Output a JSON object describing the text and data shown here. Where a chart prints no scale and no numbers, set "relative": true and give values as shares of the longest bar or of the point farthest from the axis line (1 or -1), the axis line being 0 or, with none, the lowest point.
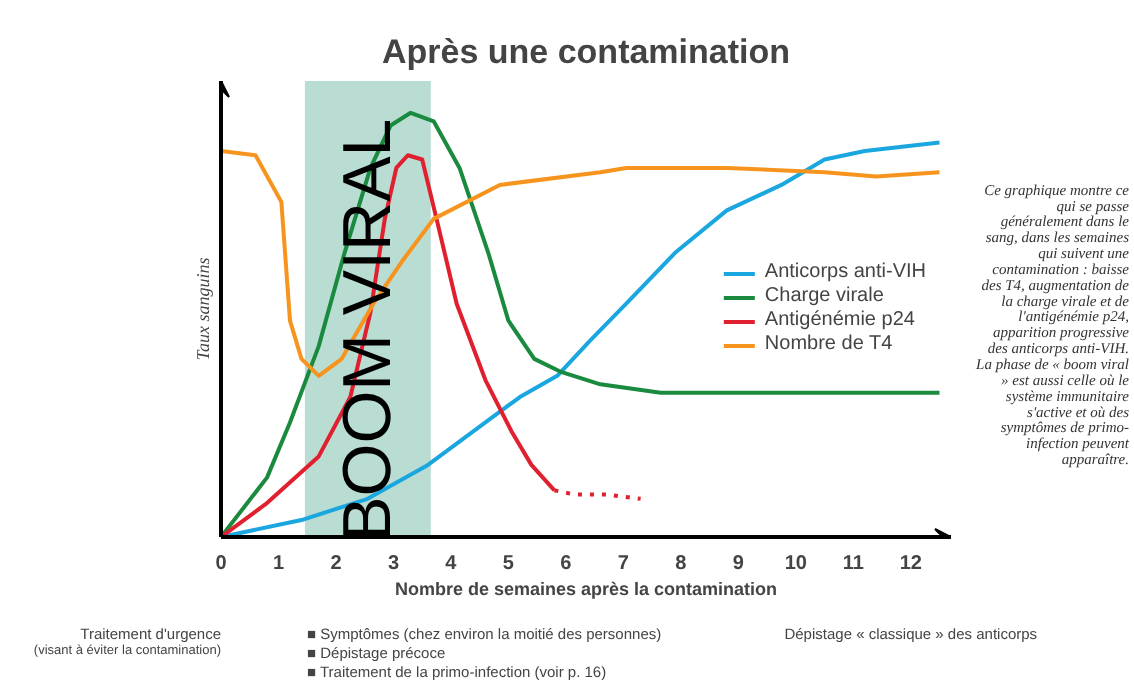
{
  "chart_data": {
    "type": "line",
    "title": "Après une contamination",
    "xlabel": "Nombre de semaines après la contamination",
    "ylabel": "Taux sanguins",
    "relative": true,
    "grid": false,
    "legend": "right",
    "line_style": "solid",
    "marker": "none",
    "xlim": [
      0,
      12.7
    ],
    "xticks": [
      0,
      1,
      2,
      3,
      4,
      5,
      6,
      7,
      8,
      9,
      10,
      11,
      12
    ],
    "series": [
      {
        "name": "Anticorps anti-VIH",
        "color": "#1aa7e0",
        "x": [
          0,
          1.4,
          2.55,
          3.6,
          4.5,
          5.2,
          5.85,
          6.4,
          7.05,
          7.9,
          8.8,
          9.75,
          10.5,
          11.2,
          12.5
        ],
        "values": [
          0,
          0.04,
          0.09,
          0.17,
          0.26,
          0.33,
          0.38,
          0.46,
          0.55,
          0.67,
          0.77,
          0.83,
          0.89,
          0.91,
          0.93
        ]
      },
      {
        "name": "Charge virale",
        "color": "#1a8a3e",
        "x": [
          0,
          0.8,
          1.2,
          1.7,
          2.15,
          2.6,
          2.95,
          3.3,
          3.7,
          4.15,
          4.65,
          5,
          5.45,
          5.9,
          6.6,
          7.65,
          9.4,
          12.5
        ],
        "values": [
          0,
          0.14,
          0.27,
          0.45,
          0.67,
          0.87,
          0.97,
          1.0,
          0.98,
          0.87,
          0.67,
          0.51,
          0.42,
          0.39,
          0.36,
          0.34,
          0.34,
          0.34
        ]
      },
      {
        "name": "Antigénémie p24",
        "color": "#e0202e",
        "x": [
          0,
          0.8,
          1.7,
          2.25,
          2.6,
          2.85,
          3.05,
          3.25,
          3.5,
          3.75,
          4.1,
          4.6,
          5.05,
          5.4,
          5.8
        ],
        "values": [
          0,
          0.08,
          0.19,
          0.33,
          0.53,
          0.75,
          0.87,
          0.9,
          0.89,
          0.75,
          0.55,
          0.37,
          0.25,
          0.17,
          0.11
        ]
      },
      {
        "name": "Nombre de T4",
        "color": "#f7941d",
        "x": [
          0,
          0.6,
          1.05,
          1.2,
          1.4,
          1.7,
          2.1,
          2.65,
          3.15,
          3.7,
          4.85,
          6.6,
          7.05,
          8.8,
          10.5,
          11.4,
          12.5
        ],
        "values": [
          0.91,
          0.9,
          0.79,
          0.51,
          0.42,
          0.38,
          0.42,
          0.55,
          0.65,
          0.75,
          0.83,
          0.86,
          0.87,
          0.87,
          0.86,
          0.85,
          0.86
        ]
      },
      {
        "color": "#e0202e",
        "line_style": "dotted",
        "x": [
          5.8,
          6.15,
          6.7,
          7.3
        ],
        "values": [
          0.11,
          0.1,
          0.1,
          0.09
        ]
      }
    ],
    "bands": [
      {
        "axis": "x",
        "from": 1.46,
        "to": 3.65,
        "label": "BOOM VIRAL",
        "color": "#b9ddd3"
      }
    ],
    "annotations": [
      "Traitement d'urgence\n(visant à éviter la contamination)",
      "■ Symptômes (chez environ la moitié des personnes)",
      "■ Dépistage précoce",
      "■ Traitement de la primo-infection (voir p. 16)",
      "Dépistage « classique » des anticorps",
      "Ce graphique montre ce qui se passe généralement dans le sang, dans les semaines qui suivent une contamination : baisse des T4, augmentation de la charge virale et de l'antigénémie p24, apparition progressive des anticorps anti-VIH. La phase de « boom viral » est aussi celle où le système immunitaire s'active et où des symptômes de primo-infection peuvent apparaître."
    ]
  }
}
